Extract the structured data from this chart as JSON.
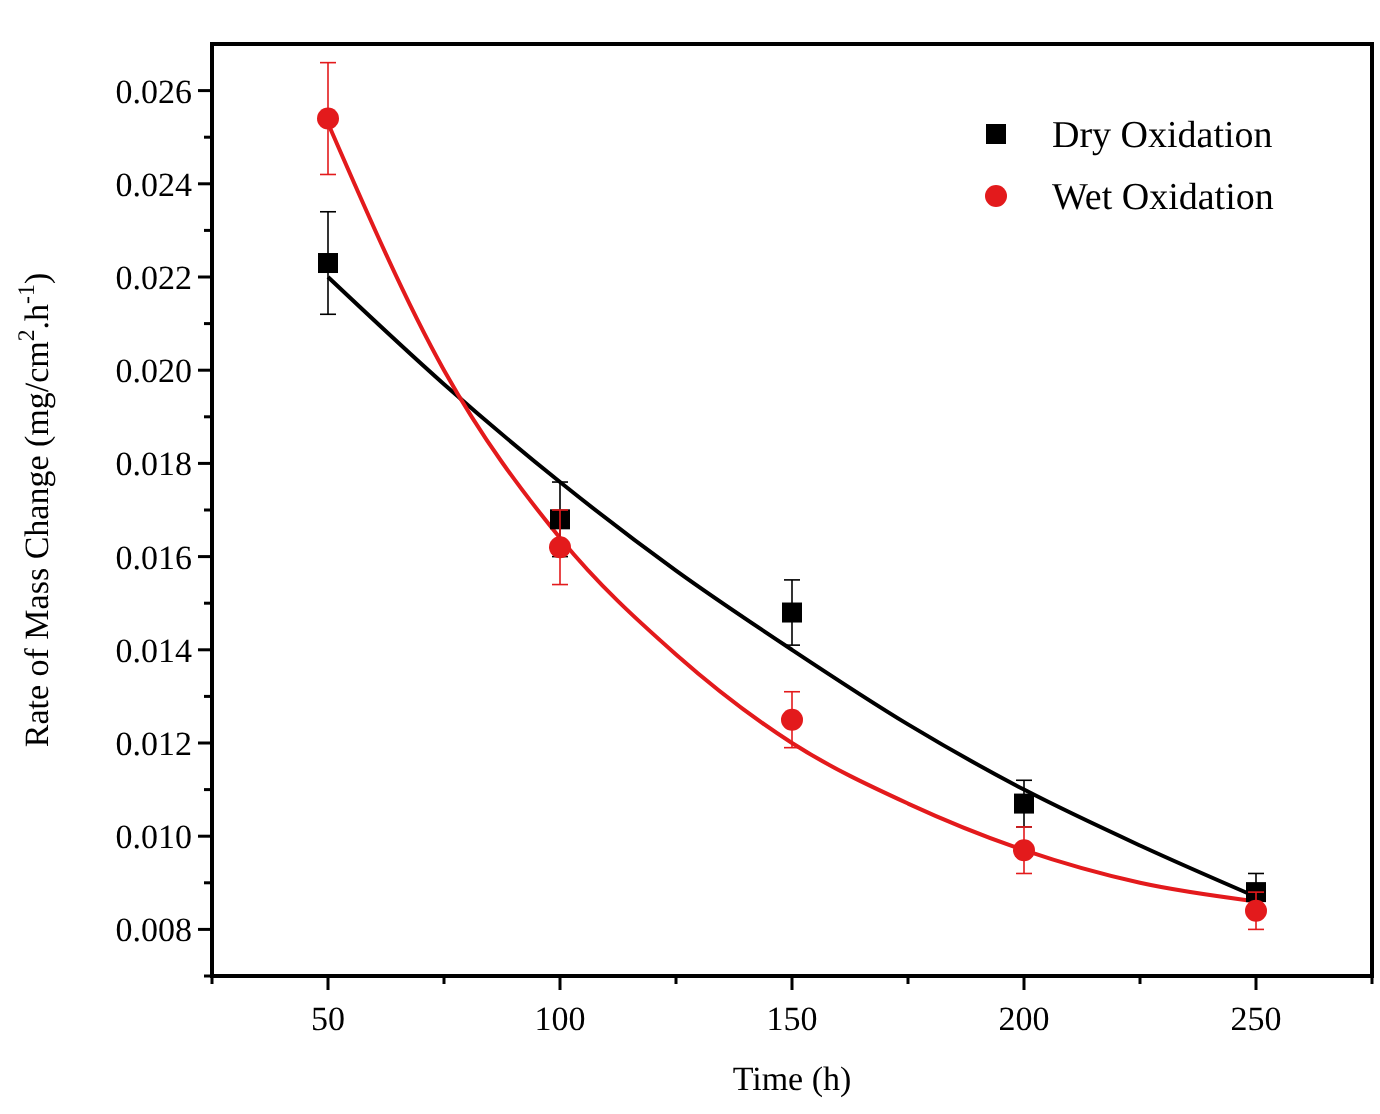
{
  "chart_data": {
    "type": "scatter",
    "xlabel": "Time (h)",
    "ylabel": "Rate of Mass Change (mg/cm$^{2}$.h$^{-1}$)",
    "x": [
      50,
      100,
      150,
      200,
      250
    ],
    "xlim": [
      25,
      275
    ],
    "xticks": [
      {
        "value": 25,
        "label": null
      },
      50,
      {
        "value": 75,
        "label": null
      },
      100,
      {
        "value": 125,
        "label": null
      },
      150,
      {
        "value": 175,
        "label": null
      },
      200,
      {
        "value": 225,
        "label": null
      },
      250,
      {
        "value": 275,
        "label": null
      }
    ],
    "ylim": [
      0.007,
      0.027
    ],
    "yticks": [
      {
        "value": 0.007,
        "label": null
      },
      {
        "value": 0.008,
        "label": "0.008"
      },
      {
        "value": 0.009,
        "label": null
      },
      {
        "value": 0.01,
        "label": "0.010"
      },
      {
        "value": 0.011,
        "label": null
      },
      {
        "value": 0.012,
        "label": "0.012"
      },
      {
        "value": 0.013,
        "label": null
      },
      {
        "value": 0.014,
        "label": "0.014"
      },
      {
        "value": 0.015,
        "label": null
      },
      {
        "value": 0.016,
        "label": "0.016"
      },
      {
        "value": 0.017,
        "label": null
      },
      {
        "value": 0.018,
        "label": "0.018"
      },
      {
        "value": 0.019,
        "label": null
      },
      {
        "value": 0.02,
        "label": "0.020"
      },
      {
        "value": 0.021,
        "label": null
      },
      {
        "value": 0.022,
        "label": "0.022"
      },
      {
        "value": 0.023,
        "label": null
      },
      {
        "value": 0.024,
        "label": "0.024"
      },
      {
        "value": 0.025,
        "label": null
      },
      {
        "value": 0.026,
        "label": "0.026"
      }
    ],
    "legend": "top right",
    "grid": false,
    "series": [
      {
        "name": "Dry Oxidation",
        "color": "#000000",
        "marker": "square",
        "values": [
          0.0223,
          0.0168,
          0.0148,
          0.0107,
          0.0088
        ],
        "errors": [
          0.0011,
          0.0008,
          0.0007,
          0.0005,
          0.0004
        ]
      },
      {
        "name": "Wet Oxidation",
        "color": "#e31a1c",
        "marker": "circle",
        "values": [
          0.0254,
          0.0162,
          0.0125,
          0.0097,
          0.0084
        ],
        "errors": [
          0.0012,
          0.0008,
          0.0006,
          0.0005,
          0.0004
        ]
      },
      {
        "type": "line",
        "color": "#000000",
        "x": [
          50,
          75,
          100,
          125,
          150,
          175,
          200,
          225,
          250
        ],
        "values": [
          0.022,
          0.0197,
          0.0176,
          0.0157,
          0.014,
          0.0124,
          0.011,
          0.0098,
          0.0087
        ]
      },
      {
        "type": "line",
        "color": "#e31a1c",
        "x": [
          50,
          75,
          100,
          125,
          150,
          175,
          200,
          225,
          250
        ],
        "values": [
          0.0253,
          0.02,
          0.0164,
          0.0139,
          0.012,
          0.0107,
          0.0097,
          0.009,
          0.0086
        ]
      }
    ]
  }
}
